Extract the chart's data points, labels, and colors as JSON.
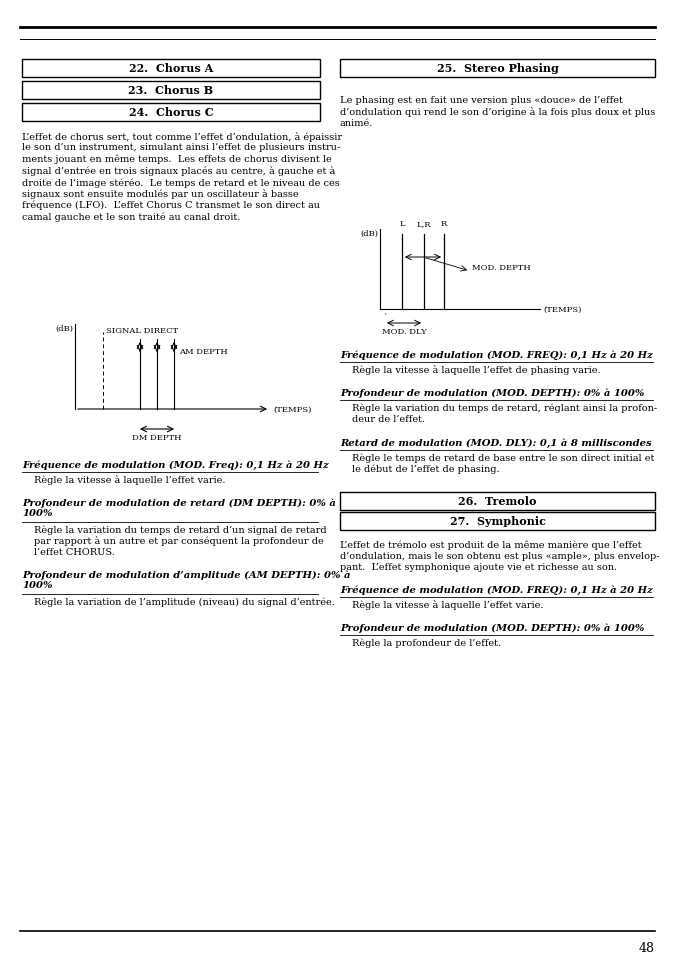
{
  "bg_color": "#ffffff",
  "page_number": "48",
  "boxes_left": [
    "22.  Chorus A",
    "23.  Chorus B",
    "24.  Chorus C"
  ],
  "boxes_right_top": [
    "25.  Stereo Phasing"
  ],
  "boxes_right_bottom": [
    "26.  Tremolo",
    "27.  Symphonic"
  ],
  "left_body_text": "L’effet de chorus sert, tout comme l’effet d’ondulation, à épaissir\nle son d’un instrument, simulant ainsi l’effet de plusieurs instru-\nments jouant en même temps.  Les effets de chorus divisent le\nsignal d’entrée en trois signaux placés au centre, à gauche et à\ndroite de l’image stéréo.  Le temps de retard et le niveau de ces\nsignaux sont ensuite modulés par un oscillateur à basse\nfréquence (LFO).  L’effet Chorus C transmet le son direct au\ncamal gauche et le son traité au canal droit.",
  "right_intro_text": "Le phasing est en fait une version plus «douce» de l’effet\nd’ondulation qui rend le son d’origine à la fois plus doux et plus\nanimé.",
  "left_sections": [
    {
      "bold": "Fréquence de modulation (MOD. Freq): 0,1 Hz à 20 Hz",
      "normal": "Règle la vitesse à laquelle l’effet varie."
    },
    {
      "bold": "Profondeur de modulation de retard (DM DEPTH): 0% à\n100%",
      "normal": "Règle la variation du temps de retard d’un signal de retard\npar rapport à un autre et par conséquent la profondeur de\nl’effet CHORUS."
    },
    {
      "bold": "Profondeur de modulation d’amplitude (AM DEPTH): 0% à\n100%",
      "normal": "Règle la variation de l’amplitude (niveau) du signal d’entrée."
    }
  ],
  "right_sections_phasing": [
    {
      "bold": "Fréquence de modulation (MOD. FREQ): 0,1 Hz à 20 Hz",
      "normal": "Règle la vitesse à laquelle l’effet de phasing varie."
    },
    {
      "bold": "Profondeur de modulation (MOD. DEPTH): 0% à 100%",
      "normal": "Règle la variation du temps de retard, réglant ainsi la profon-\ndeur de l’effet."
    },
    {
      "bold": "Retard de modulation (MOD. DLY): 0,1 à 8 milliscondes",
      "normal": "Règle le temps de retard de base entre le son direct initial et\nle début de l’effet de phasing."
    }
  ],
  "right_sections_tremolo": [
    {
      "bold": "Fréquence de modulation (MOD. FREQ): 0,1 Hz à 20 Hz",
      "normal": "Règle la vitesse à laquelle l’effet varie."
    },
    {
      "bold": "Profondeur de modulation (MOD. DEPTH): 0% à 100%",
      "normal": "Règle la profondeur de l’effet."
    }
  ],
  "tremolo_intro": "L’effet de trémolo est produit de la même manière que l’effet\nd’ondulation, mais le son obtenu est plus «ample», plus envelop-\npant.  L’effet symphonique ajoute vie et richesse au son."
}
